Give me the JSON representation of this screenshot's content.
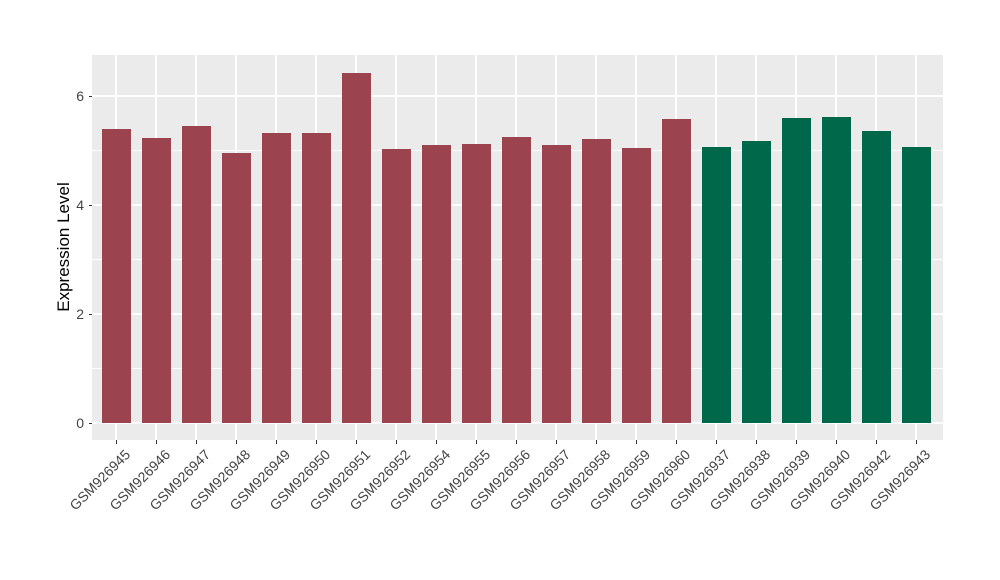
{
  "chart_data": {
    "type": "bar",
    "title": "",
    "xlabel": "",
    "ylabel": "Expression Level",
    "categories": [
      "GSM926945",
      "GSM926946",
      "GSM926947",
      "GSM926948",
      "GSM926949",
      "GSM926950",
      "GSM926951",
      "GSM926952",
      "GSM926954",
      "GSM926955",
      "GSM926956",
      "GSM926957",
      "GSM926958",
      "GSM926959",
      "GSM926960",
      "GSM926937",
      "GSM926938",
      "GSM926939",
      "GSM926940",
      "GSM926942",
      "GSM926943"
    ],
    "values": [
      5.39,
      5.23,
      5.45,
      4.96,
      5.33,
      5.33,
      6.42,
      5.02,
      5.11,
      5.12,
      5.25,
      5.11,
      5.22,
      5.04,
      5.57,
      5.06,
      5.18,
      5.6,
      5.62,
      5.35,
      5.06
    ],
    "group_of_each": [
      "groupA",
      "groupA",
      "groupA",
      "groupA",
      "groupA",
      "groupA",
      "groupA",
      "groupA",
      "groupA",
      "groupA",
      "groupA",
      "groupA",
      "groupA",
      "groupA",
      "groupA",
      "groupB",
      "groupB",
      "groupB",
      "groupB",
      "groupB",
      "groupB"
    ],
    "group_colors": {
      "groupA": "#9B4450",
      "groupB": "#00684A"
    },
    "y_ticks": [
      0,
      2,
      4,
      6
    ],
    "y_minor_gridlines": [
      1,
      3,
      5
    ],
    "ylim": [
      -0.32,
      6.75
    ],
    "grid": true,
    "legend_position": "none",
    "panel_background": "#EBEBEB",
    "gridline_color": "#FFFFFF",
    "axis_text_color": "#444444",
    "axis_title_color": "#000000",
    "tick_color": "#333333"
  }
}
